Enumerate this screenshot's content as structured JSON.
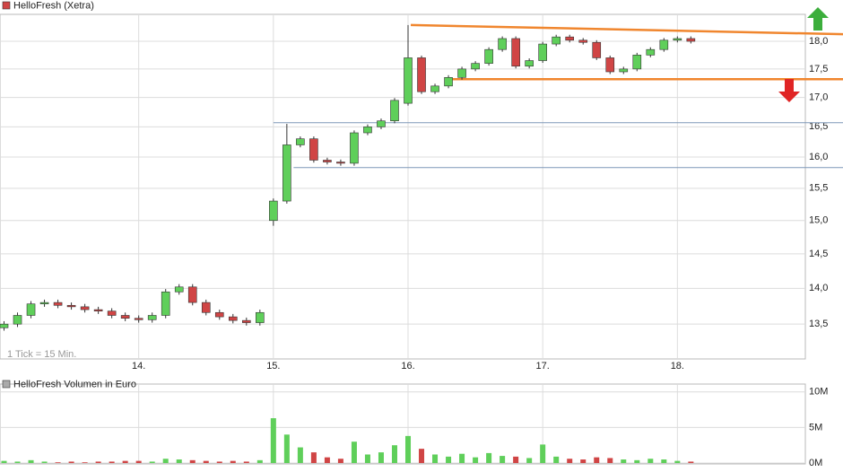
{
  "chart_data": [
    {
      "type": "candlestick",
      "title": "HelloFresh (Xetra)",
      "legend_color": "#d04545",
      "note": "1 Tick = 15 Min.",
      "log_scale": true,
      "grid": true,
      "up_color": "#5fcf5a",
      "down_color": "#d04545",
      "xlim": [
        12.97,
        18.95
      ],
      "ylim": [
        13.03,
        18.5
      ],
      "xticks": [
        {
          "value": 14,
          "label": "14."
        },
        {
          "value": 15,
          "label": "15."
        },
        {
          "value": 16,
          "label": "16."
        },
        {
          "value": 17,
          "label": "17."
        },
        {
          "value": 18,
          "label": "18."
        }
      ],
      "yticks": [
        {
          "value": 13.5,
          "label": "13,5"
        },
        {
          "value": 14,
          "label": "14,0"
        },
        {
          "value": 14.5,
          "label": "14,5"
        },
        {
          "value": 15,
          "label": "15,0"
        },
        {
          "value": 15.5,
          "label": "15,5"
        },
        {
          "value": 16,
          "label": "16,0"
        },
        {
          "value": 16.5,
          "label": "16,5"
        },
        {
          "value": 17,
          "label": "17,0"
        },
        {
          "value": 17.5,
          "label": "17,5"
        },
        {
          "value": 18,
          "label": "18,0"
        }
      ],
      "x": [
        13.0,
        13.1,
        13.2,
        13.3,
        13.4,
        13.5,
        13.6,
        13.7,
        13.8,
        13.9,
        14.0,
        14.1,
        14.2,
        14.3,
        14.4,
        14.5,
        14.6,
        14.7,
        14.8,
        14.9,
        15.0,
        15.1,
        15.2,
        15.3,
        15.4,
        15.5,
        15.6,
        15.7,
        15.8,
        15.9,
        16.0,
        16.1,
        16.2,
        16.3,
        16.4,
        16.5,
        16.6,
        16.7,
        16.8,
        16.9,
        17.0,
        17.1,
        17.2,
        17.3,
        17.4,
        17.5,
        17.6,
        17.7,
        17.8,
        17.9,
        18.0,
        18.1
      ],
      "open": [
        13.45,
        13.5,
        13.62,
        13.78,
        13.8,
        13.76,
        13.74,
        13.7,
        13.68,
        13.62,
        13.58,
        13.56,
        13.62,
        13.95,
        14.02,
        13.8,
        13.66,
        13.6,
        13.55,
        13.52,
        15.0,
        15.3,
        16.2,
        16.3,
        15.95,
        15.92,
        15.9,
        16.4,
        16.5,
        16.6,
        16.9,
        17.7,
        17.1,
        17.2,
        17.35,
        17.5,
        17.6,
        17.85,
        18.05,
        17.55,
        17.65,
        17.95,
        18.08,
        18.02,
        17.98,
        17.7,
        17.45,
        17.5,
        17.75,
        17.85,
        18.02,
        18.05
      ],
      "high": [
        13.54,
        13.66,
        13.82,
        13.84,
        13.84,
        13.8,
        13.78,
        13.74,
        13.72,
        13.66,
        13.62,
        13.66,
        13.99,
        14.06,
        14.06,
        13.84,
        13.7,
        13.64,
        13.59,
        13.7,
        15.34,
        16.55,
        16.34,
        16.34,
        15.99,
        15.96,
        16.44,
        16.54,
        16.64,
        16.99,
        18.3,
        17.74,
        17.24,
        17.39,
        17.54,
        17.64,
        17.89,
        18.09,
        18.09,
        17.69,
        17.99,
        18.12,
        18.12,
        18.06,
        18.02,
        17.74,
        17.54,
        17.79,
        17.89,
        18.06,
        18.09,
        18.09
      ],
      "low": [
        13.41,
        13.46,
        13.58,
        13.74,
        13.72,
        13.7,
        13.66,
        13.64,
        13.58,
        13.54,
        13.52,
        13.52,
        13.58,
        13.91,
        13.76,
        13.62,
        13.56,
        13.51,
        13.48,
        13.48,
        14.92,
        15.26,
        16.16,
        15.91,
        15.88,
        15.86,
        15.86,
        16.36,
        16.46,
        16.56,
        16.86,
        17.06,
        17.06,
        17.16,
        17.31,
        17.46,
        17.56,
        17.81,
        17.51,
        17.51,
        17.61,
        17.91,
        17.98,
        17.94,
        17.66,
        17.41,
        17.41,
        17.46,
        17.71,
        17.81,
        17.98,
        17.96
      ],
      "close": [
        13.5,
        13.62,
        13.78,
        13.8,
        13.76,
        13.74,
        13.7,
        13.68,
        13.62,
        13.58,
        13.56,
        13.62,
        13.95,
        14.02,
        13.8,
        13.66,
        13.6,
        13.55,
        13.52,
        13.66,
        15.3,
        16.2,
        16.3,
        15.95,
        15.92,
        15.9,
        16.4,
        16.5,
        16.6,
        16.95,
        17.7,
        17.1,
        17.2,
        17.35,
        17.5,
        17.6,
        17.85,
        18.05,
        17.55,
        17.65,
        17.95,
        18.08,
        18.02,
        17.98,
        17.7,
        17.45,
        17.5,
        17.75,
        17.85,
        18.02,
        18.05,
        18.0
      ],
      "lines": [
        {
          "x": [
            16.02,
            19.23
          ],
          "y": [
            18.3,
            18.13
          ],
          "color": "#f0862e"
        },
        {
          "x": [
            16.3,
            19.23
          ],
          "y": [
            17.32,
            17.32
          ],
          "color": "#f0862e"
        },
        {
          "x": [
            15.0,
            19.23
          ],
          "y": [
            16.57,
            16.57
          ],
          "color": "#7d97b8"
        },
        {
          "x": [
            15.15,
            19.23
          ],
          "y": [
            15.83,
            15.83
          ],
          "color": "#7d97b8"
        }
      ]
    },
    {
      "type": "bar",
      "title": "HelloFresh Volumen in Euro",
      "legend_color": "#aaaaaa",
      "grid": true,
      "ylim": [
        0,
        11.1
      ],
      "yticks": [
        {
          "value": 0,
          "label": "0M"
        },
        {
          "value": 5,
          "label": "5M"
        },
        {
          "value": 10,
          "label": "10M"
        }
      ],
      "values": [
        0.3,
        0.2,
        0.4,
        0.2,
        0.1,
        0.2,
        0.1,
        0.2,
        0.2,
        0.3,
        0.3,
        0.2,
        0.6,
        0.5,
        0.4,
        0.3,
        0.2,
        0.3,
        0.2,
        0.4,
        6.3,
        4.0,
        2.2,
        1.5,
        0.8,
        0.6,
        3.0,
        1.2,
        1.5,
        2.5,
        3.8,
        2.0,
        1.2,
        0.9,
        1.3,
        0.8,
        1.4,
        1.0,
        0.9,
        0.7,
        2.6,
        0.9,
        0.6,
        0.5,
        0.8,
        0.7,
        0.5,
        0.4,
        0.6,
        0.5,
        0.3,
        0.2
      ]
    }
  ]
}
